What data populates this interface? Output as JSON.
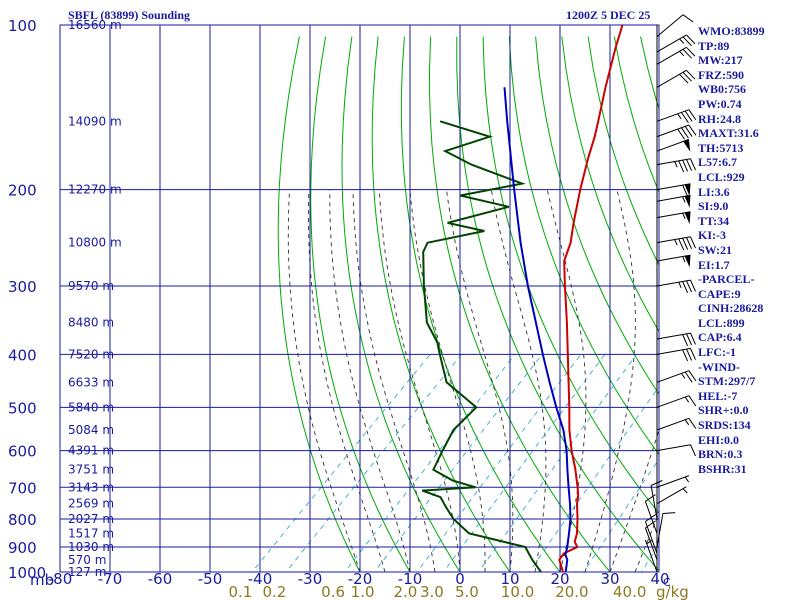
{
  "header": {
    "title_left": "SBFL (83899) Sounding",
    "title_right": "1200Z  5 DEC 25"
  },
  "stats": [
    "WMO:83899",
    "TP:89",
    "MW:217",
    "FRZ:590",
    "WB0:756",
    "PW:0.74",
    "RH:24.8",
    "MAXT:31.6",
    "TH:5713",
    "L57:6.7",
    "LCL:929",
    "LI:3.6",
    "SI:9.0",
    "TT:34",
    "KI:-3",
    "SW:21",
    "EI:1.7",
    "-PARCEL-",
    "CAPE:9",
    "CINH:28628",
    "LCL:899",
    "CAP:6.4",
    "LFC:-1",
    "-WIND-",
    "STM:297/7",
    "HEL:-7",
    "SHR+:0.0",
    "SRDS:134",
    "EHI:0.0",
    "BRN:0.3",
    "BSHR:31"
  ],
  "chart_data": {
    "type": "line",
    "chart_kind": "skew-T log-P sounding diagram",
    "x_axis": {
      "unit_label": "C",
      "range": [
        -80,
        40
      ],
      "ticks": [
        -80,
        -70,
        -60,
        -50,
        -40,
        -30,
        -20,
        -10,
        0,
        10,
        20,
        30,
        40
      ],
      "tick_labels": [
        "-80",
        "-70",
        "-60",
        "-50",
        "-40",
        "-30",
        "-20",
        "-10",
        "0",
        "10",
        "20",
        "30",
        "40"
      ]
    },
    "y_axis": {
      "scale": "log",
      "unit_label": "mb",
      "range": [
        1000,
        100
      ],
      "ticks": [
        100,
        200,
        300,
        400,
        500,
        600,
        700,
        800,
        900,
        1000
      ],
      "tick_labels": [
        "100",
        "200",
        "300",
        "400",
        "500",
        "600",
        "700",
        "800",
        "900",
        "1000"
      ]
    },
    "height_labels": [
      {
        "p": 100,
        "label": "16560 m"
      },
      {
        "p": 150,
        "label": "14090 m"
      },
      {
        "p": 200,
        "label": "12270 m"
      },
      {
        "p": 250,
        "label": "10800 m"
      },
      {
        "p": 300,
        "label": "9570 m"
      },
      {
        "p": 350,
        "label": "8480 m"
      },
      {
        "p": 400,
        "label": "7520 m"
      },
      {
        "p": 450,
        "label": "6633 m"
      },
      {
        "p": 500,
        "label": "5840 m"
      },
      {
        "p": 550,
        "label": "5084 m"
      },
      {
        "p": 600,
        "label": "4391 m"
      },
      {
        "p": 650,
        "label": "3751 m"
      },
      {
        "p": 700,
        "label": "3143 m"
      },
      {
        "p": 750,
        "label": "2569 m"
      },
      {
        "p": 800,
        "label": "2027 m"
      },
      {
        "p": 850,
        "label": "1517 m"
      },
      {
        "p": 900,
        "label": "1030 m"
      },
      {
        "p": 950,
        "label": "570 m"
      },
      {
        "p": 1000,
        "label": "127 m"
      }
    ],
    "mixing_ratio_axis": {
      "unit_label": "g/kg",
      "labels": [
        {
          "value": 0.1,
          "label": "0.1"
        },
        {
          "value": 0.2,
          "label": "0.2"
        },
        {
          "value": 0.6,
          "label": "0.6"
        },
        {
          "value": 1.0,
          "label": "1.0"
        },
        {
          "value": 2.0,
          "label": "2.0"
        },
        {
          "value": 3.0,
          "label": "3.0"
        },
        {
          "value": 5.0,
          "label": "5.0"
        },
        {
          "value": 10.0,
          "label": "10.0"
        },
        {
          "value": 20.0,
          "label": "20.0"
        },
        {
          "value": 40.0,
          "label": "40.0"
        }
      ]
    },
    "series": [
      {
        "key": "temperature",
        "color": "#cc0000",
        "points": [
          {
            "p": 1016,
            "t": 21.8
          },
          {
            "p": 1000,
            "t": 20.6
          },
          {
            "p": 950,
            "t": 17.4
          },
          {
            "p": 925,
            "t": 17.0
          },
          {
            "p": 900,
            "t": 18.4
          },
          {
            "p": 880,
            "t": 16.8
          },
          {
            "p": 850,
            "t": 15.6
          },
          {
            "p": 800,
            "t": 12.8
          },
          {
            "p": 750,
            "t": 9.6
          },
          {
            "p": 725,
            "t": 8.2
          },
          {
            "p": 700,
            "t": 6.4
          },
          {
            "p": 650,
            "t": 2.4
          },
          {
            "p": 600,
            "t": -2.2
          },
          {
            "p": 550,
            "t": -6.8
          },
          {
            "p": 500,
            "t": -11.4
          },
          {
            "p": 450,
            "t": -16.6
          },
          {
            "p": 400,
            "t": -22.4
          },
          {
            "p": 350,
            "t": -29.0
          },
          {
            "p": 300,
            "t": -36.8
          },
          {
            "p": 270,
            "t": -42.0
          },
          {
            "p": 250,
            "t": -44.4
          },
          {
            "p": 230,
            "t": -47.8
          },
          {
            "p": 200,
            "t": -53.2
          },
          {
            "p": 175,
            "t": -58.0
          },
          {
            "p": 160,
            "t": -61.0
          },
          {
            "p": 150,
            "t": -63.4
          },
          {
            "p": 130,
            "t": -68.8
          },
          {
            "p": 110,
            "t": -74.8
          },
          {
            "p": 100,
            "t": -78.0
          }
        ]
      },
      {
        "key": "dewpoint",
        "color": "#004400",
        "points": [
          {
            "p": 1016,
            "t": 18.2
          },
          {
            "p": 1000,
            "t": 16.2
          },
          {
            "p": 950,
            "t": 12.0
          },
          {
            "p": 900,
            "t": 8.0
          },
          {
            "p": 850,
            "t": -6.0
          },
          {
            "p": 800,
            "t": -12.0
          },
          {
            "p": 760,
            "t": -16.0
          },
          {
            "p": 730,
            "t": -19.0
          },
          {
            "p": 710,
            "t": -24.0
          },
          {
            "p": 700,
            "t": -14.0
          },
          {
            "p": 680,
            "t": -20.0
          },
          {
            "p": 650,
            "t": -26.0
          },
          {
            "p": 600,
            "t": -28.0
          },
          {
            "p": 550,
            "t": -30.0
          },
          {
            "p": 500,
            "t": -30.0
          },
          {
            "p": 450,
            "t": -41.0
          },
          {
            "p": 400,
            "t": -48.0
          },
          {
            "p": 380,
            "t": -51.0
          },
          {
            "p": 350,
            "t": -57.0
          },
          {
            "p": 300,
            "t": -65.0
          },
          {
            "p": 260,
            "t": -72.0
          },
          {
            "p": 250,
            "t": -73.0
          },
          {
            "p": 238,
            "t": -64.0
          },
          {
            "p": 230,
            "t": -73.0
          },
          {
            "p": 215,
            "t": -64.0
          },
          {
            "p": 205,
            "t": -76.0
          },
          {
            "p": 195,
            "t": -66.0
          },
          {
            "p": 180,
            "t": -80.0
          },
          {
            "p": 170,
            "t": -88.0
          },
          {
            "p": 160,
            "t": -82.0
          },
          {
            "p": 150,
            "t": -95.0
          }
        ]
      },
      {
        "key": "parcel",
        "color": "#0000bb",
        "points": [
          {
            "p": 1016,
            "t": 21.8
          },
          {
            "p": 950,
            "t": 19.0
          },
          {
            "p": 930,
            "t": 17.6
          },
          {
            "p": 900,
            "t": 16.4
          },
          {
            "p": 850,
            "t": 14.0
          },
          {
            "p": 800,
            "t": 11.4
          },
          {
            "p": 750,
            "t": 8.2
          },
          {
            "p": 700,
            "t": 4.6
          },
          {
            "p": 650,
            "t": 0.8
          },
          {
            "p": 600,
            "t": -3.2
          },
          {
            "p": 550,
            "t": -8.0
          },
          {
            "p": 500,
            "t": -14.0
          },
          {
            "p": 450,
            "t": -20.4
          },
          {
            "p": 400,
            "t": -27.4
          },
          {
            "p": 350,
            "t": -35.2
          },
          {
            "p": 300,
            "t": -44.2
          },
          {
            "p": 250,
            "t": -54.4
          },
          {
            "p": 200,
            "t": -66.4
          },
          {
            "p": 150,
            "t": -81.6
          },
          {
            "p": 130,
            "t": -89.0
          }
        ]
      }
    ],
    "wind_barbs": [
      {
        "p": 105,
        "dir": 230,
        "spd": 10
      },
      {
        "p": 112,
        "dir": 240,
        "spd": 25
      },
      {
        "p": 118,
        "dir": 240,
        "spd": 25
      },
      {
        "p": 130,
        "dir": 240,
        "spd": 30
      },
      {
        "p": 150,
        "dir": 250,
        "spd": 35
      },
      {
        "p": 160,
        "dir": 250,
        "spd": 40
      },
      {
        "p": 170,
        "dir": 250,
        "spd": 50
      },
      {
        "p": 180,
        "dir": 260,
        "spd": 45
      },
      {
        "p": 200,
        "dir": 260,
        "spd": 60
      },
      {
        "p": 210,
        "dir": 260,
        "spd": 55
      },
      {
        "p": 225,
        "dir": 260,
        "spd": 55
      },
      {
        "p": 250,
        "dir": 260,
        "spd": 45
      },
      {
        "p": 270,
        "dir": 260,
        "spd": 55
      },
      {
        "p": 300,
        "dir": 260,
        "spd": 35
      },
      {
        "p": 375,
        "dir": 260,
        "spd": 30
      },
      {
        "p": 400,
        "dir": 260,
        "spd": 30
      },
      {
        "p": 450,
        "dir": 250,
        "spd": 25
      },
      {
        "p": 500,
        "dir": 250,
        "spd": 15
      },
      {
        "p": 550,
        "dir": 250,
        "spd": 15
      },
      {
        "p": 600,
        "dir": 260,
        "spd": 10
      },
      {
        "p": 700,
        "dir": 250,
        "spd": 5
      },
      {
        "p": 750,
        "dir": 240,
        "spd": 5
      },
      {
        "p": 800,
        "dir": 170,
        "spd": 10
      },
      {
        "p": 850,
        "dir": 160,
        "spd": 10
      },
      {
        "p": 900,
        "dir": 190,
        "spd": 10
      },
      {
        "p": 925,
        "dir": 160,
        "spd": 10
      },
      {
        "p": 950,
        "dir": 160,
        "spd": 10
      },
      {
        "p": 1000,
        "dir": 160,
        "spd": 5
      }
    ],
    "legend": "none",
    "grid": true
  }
}
